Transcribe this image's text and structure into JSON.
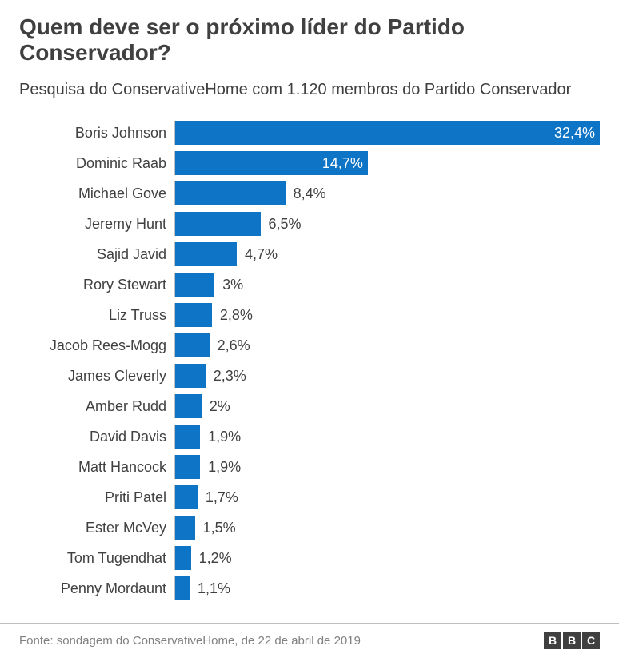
{
  "title": "Quem deve ser o próximo líder do Partido Conservador?",
  "subtitle": "Pesquisa do ConservativeHome com 1.120 membros do Partido Conservador",
  "chart": {
    "type": "bar-horizontal",
    "bar_color": "#0e74c6",
    "axis_color": "#bfbfbf",
    "value_inside_color": "#ffffff",
    "value_outside_color": "#404040",
    "label_fontsize": 18,
    "value_fontsize": 18,
    "max_value": 32.4,
    "items": [
      {
        "label": "Boris Johnson",
        "value": 32.4,
        "display": "32,4%",
        "value_position": "inside"
      },
      {
        "label": "Dominic Raab",
        "value": 14.7,
        "display": "14,7%",
        "value_position": "inside"
      },
      {
        "label": "Michael Gove",
        "value": 8.4,
        "display": "8,4%",
        "value_position": "outside"
      },
      {
        "label": "Jeremy Hunt",
        "value": 6.5,
        "display": "6,5%",
        "value_position": "outside"
      },
      {
        "label": "Sajid Javid",
        "value": 4.7,
        "display": "4,7%",
        "value_position": "outside"
      },
      {
        "label": "Rory Stewart",
        "value": 3.0,
        "display": "3%",
        "value_position": "outside"
      },
      {
        "label": "Liz Truss",
        "value": 2.8,
        "display": "2,8%",
        "value_position": "outside"
      },
      {
        "label": "Jacob Rees-Mogg",
        "value": 2.6,
        "display": "2,6%",
        "value_position": "outside"
      },
      {
        "label": "James Cleverly",
        "value": 2.3,
        "display": "2,3%",
        "value_position": "outside"
      },
      {
        "label": "Amber Rudd",
        "value": 2.0,
        "display": "2%",
        "value_position": "outside"
      },
      {
        "label": "David Davis",
        "value": 1.9,
        "display": "1,9%",
        "value_position": "outside"
      },
      {
        "label": "Matt Hancock",
        "value": 1.9,
        "display": "1,9%",
        "value_position": "outside"
      },
      {
        "label": "Priti Patel",
        "value": 1.7,
        "display": "1,7%",
        "value_position": "outside"
      },
      {
        "label": "Ester McVey",
        "value": 1.5,
        "display": "1,5%",
        "value_position": "outside"
      },
      {
        "label": "Tom Tugendhat",
        "value": 1.2,
        "display": "1,2%",
        "value_position": "outside"
      },
      {
        "label": "Penny Mordaunt",
        "value": 1.1,
        "display": "1,1%",
        "value_position": "outside"
      }
    ]
  },
  "source": "Fonte: sondagem do ConservativeHome, de 22 de abril de 2019",
  "logo_letters": [
    "B",
    "B",
    "C"
  ]
}
